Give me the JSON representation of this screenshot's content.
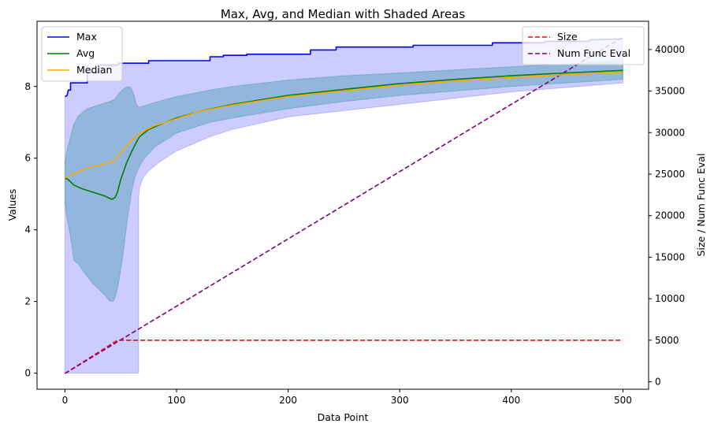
{
  "chart_data": {
    "type": "line",
    "title": "Max, Avg, and Median with Shaded Areas",
    "xlabel": "Data Point",
    "ylabel": "Values",
    "ylabel_right": "Size / Num Func Eval",
    "xlim": [
      -25,
      523
    ],
    "ylim": [
      -0.45,
      9.82
    ],
    "ylim_right": [
      -900,
      43400
    ],
    "x_ticks": [
      0,
      100,
      200,
      300,
      400,
      500
    ],
    "y_ticks": [
      0,
      2,
      4,
      6,
      8
    ],
    "y_ticks_right": [
      0,
      5000,
      10000,
      15000,
      20000,
      25000,
      30000,
      35000,
      40000
    ],
    "series_left": [
      {
        "name": "Max",
        "color": "#0000ff",
        "style": "solid",
        "x": [
          0,
          2,
          3,
          5,
          5,
          20,
          20,
          30,
          30,
          48,
          48,
          75,
          75,
          130,
          130,
          142,
          142,
          163,
          163,
          220,
          220,
          243,
          243,
          312,
          312,
          383,
          383,
          430,
          430,
          470,
          470,
          500
        ],
        "y": [
          7.72,
          7.75,
          7.9,
          7.9,
          8.1,
          8.1,
          8.4,
          8.4,
          8.6,
          8.6,
          8.65,
          8.65,
          8.72,
          8.72,
          8.83,
          8.83,
          8.87,
          8.87,
          8.9,
          8.9,
          9.02,
          9.02,
          9.1,
          9.1,
          9.15,
          9.15,
          9.22,
          9.22,
          9.26,
          9.26,
          9.3,
          9.33
        ]
      },
      {
        "name": "Avg",
        "color": "#008000",
        "style": "solid",
        "x": [
          0,
          3,
          8,
          15,
          25,
          35,
          42,
          45,
          47,
          50,
          55,
          60,
          65,
          67,
          75,
          90,
          100,
          120,
          150,
          200,
          250,
          300,
          350,
          400,
          450,
          500
        ],
        "y": [
          5.45,
          5.4,
          5.25,
          5.15,
          5.05,
          4.95,
          4.85,
          4.9,
          5.05,
          5.4,
          5.85,
          6.2,
          6.5,
          6.6,
          6.8,
          7.0,
          7.12,
          7.3,
          7.5,
          7.75,
          7.92,
          8.08,
          8.2,
          8.3,
          8.38,
          8.45
        ]
      },
      {
        "name": "Median",
        "color": "#ffa500",
        "style": "solid",
        "x": [
          0,
          5,
          10,
          20,
          30,
          40,
          44,
          50,
          55,
          60,
          65,
          70,
          80,
          100,
          120,
          150,
          200,
          250,
          300,
          350,
          400,
          450,
          500
        ],
        "y": [
          5.45,
          5.52,
          5.6,
          5.72,
          5.8,
          5.88,
          5.92,
          6.15,
          6.35,
          6.5,
          6.65,
          6.75,
          6.9,
          7.1,
          7.3,
          7.48,
          7.72,
          7.88,
          8.03,
          8.15,
          8.25,
          8.33,
          8.4
        ]
      }
    ],
    "series_right": [
      {
        "name": "Size",
        "color": "#ff0000",
        "style": "dashed",
        "x": [
          0,
          47,
          500
        ],
        "y": [
          1000,
          5000,
          5000
        ]
      },
      {
        "name": "Num Func Eval",
        "color": "#800080",
        "style": "dashed",
        "x": [
          0,
          500
        ],
        "y": [
          1000,
          41500
        ]
      }
    ],
    "shaded_areas": [
      {
        "name": "min-max range",
        "color": "#0000ff",
        "opacity": 0.2,
        "x": [
          0,
          2,
          3,
          5,
          5,
          20,
          20,
          30,
          30,
          48,
          48,
          66,
          66,
          67,
          70,
          75,
          85,
          100,
          130,
          150,
          200,
          300,
          400,
          500,
          500,
          470,
          470,
          430,
          430,
          383,
          383,
          312,
          312,
          243,
          243,
          220,
          220,
          163,
          163,
          142,
          142,
          130,
          130,
          75,
          75,
          48,
          48,
          30,
          30,
          20,
          20,
          5,
          5,
          3,
          2,
          0
        ],
        "y": [
          0,
          0,
          0,
          0,
          0,
          0,
          0,
          0,
          0,
          0,
          0,
          0,
          4.9,
          5.2,
          5.45,
          5.65,
          5.9,
          6.2,
          6.6,
          6.8,
          7.15,
          7.5,
          7.85,
          8.1,
          9.33,
          9.3,
          9.26,
          9.26,
          9.22,
          9.22,
          9.15,
          9.15,
          9.1,
          9.1,
          9.02,
          9.02,
          8.9,
          8.9,
          8.87,
          8.87,
          8.83,
          8.83,
          8.72,
          8.72,
          8.65,
          8.65,
          8.6,
          8.6,
          8.4,
          8.4,
          8.1,
          8.1,
          7.9,
          7.9,
          7.75,
          7.72
        ]
      },
      {
        "name": "std band",
        "color": "#008080",
        "opacity": 0.28,
        "x": [
          0,
          2,
          5,
          8,
          12,
          15,
          20,
          25,
          30,
          35,
          40,
          43,
          45,
          48,
          52,
          56,
          60,
          63,
          66,
          70,
          80,
          100,
          130,
          150,
          200,
          250,
          300,
          400,
          500,
          500,
          400,
          300,
          250,
          200,
          150,
          130,
          100,
          80,
          70,
          66,
          64,
          62,
          59,
          56,
          52,
          48,
          45,
          40,
          30,
          20,
          12,
          8,
          5,
          2,
          0
        ],
        "y": [
          4.75,
          4.3,
          3.8,
          3.15,
          3.05,
          2.9,
          2.7,
          2.5,
          2.35,
          2.2,
          2.02,
          2.0,
          2.1,
          2.5,
          3.3,
          4.3,
          5.1,
          5.5,
          5.72,
          5.95,
          6.3,
          6.7,
          7.0,
          7.12,
          7.38,
          7.58,
          7.75,
          8.0,
          8.2,
          8.72,
          8.55,
          8.38,
          8.3,
          8.18,
          8.0,
          7.9,
          7.72,
          7.55,
          7.45,
          7.42,
          7.5,
          7.75,
          7.98,
          8.0,
          7.92,
          7.8,
          7.65,
          7.58,
          7.48,
          7.38,
          7.18,
          6.95,
          6.6,
          6.25,
          5.9
        ]
      }
    ],
    "legend_left": {
      "placement": "top-left",
      "entries": [
        {
          "label": "Max",
          "color": "#0000ff",
          "style": "solid"
        },
        {
          "label": "Avg",
          "color": "#008000",
          "style": "solid"
        },
        {
          "label": "Median",
          "color": "#ffa500",
          "style": "solid"
        }
      ]
    },
    "legend_right": {
      "placement": "top-right",
      "entries": [
        {
          "label": "Size",
          "color": "#ff0000",
          "style": "dashed"
        },
        {
          "label": "Num Func Eval",
          "color": "#800080",
          "style": "dashed"
        }
      ]
    }
  }
}
